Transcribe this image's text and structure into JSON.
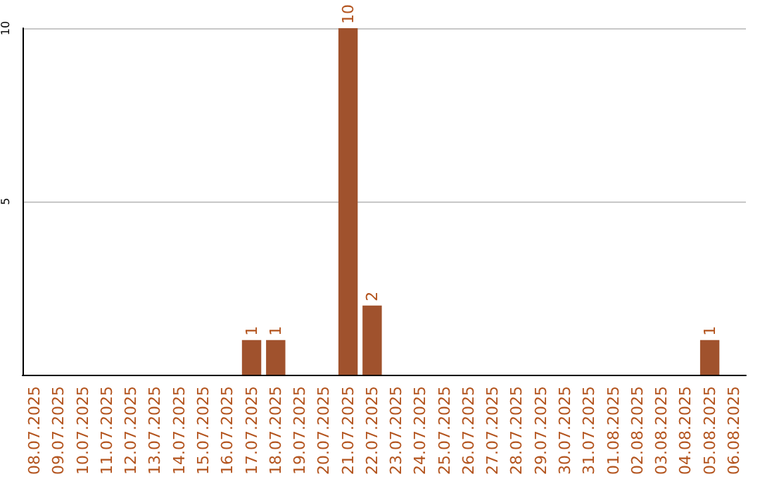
{
  "chart_data": {
    "type": "bar",
    "categories": [
      "08.07.2025",
      "09.07.2025",
      "10.07.2025",
      "11.07.2025",
      "12.07.2025",
      "13.07.2025",
      "14.07.2025",
      "15.07.2025",
      "16.07.2025",
      "17.07.2025",
      "18.07.2025",
      "19.07.2025",
      "20.07.2025",
      "21.07.2025",
      "22.07.2025",
      "23.07.2025",
      "24.07.2025",
      "25.07.2025",
      "26.07.2025",
      "27.07.2025",
      "28.07.2025",
      "29.07.2025",
      "30.07.2025",
      "31.07.2025",
      "01.08.2025",
      "02.08.2025",
      "03.08.2025",
      "04.08.2025",
      "05.08.2025",
      "06.08.2025"
    ],
    "values": [
      0,
      0,
      0,
      0,
      0,
      0,
      0,
      0,
      0,
      1,
      1,
      0,
      0,
      10,
      2,
      0,
      0,
      0,
      0,
      0,
      0,
      0,
      0,
      0,
      0,
      0,
      0,
      0,
      1,
      0
    ],
    "value_labels": [
      null,
      null,
      null,
      null,
      null,
      null,
      null,
      null,
      null,
      "1",
      "1",
      null,
      null,
      "10",
      "2",
      null,
      null,
      null,
      null,
      null,
      null,
      null,
      null,
      null,
      null,
      null,
      null,
      null,
      "1",
      null
    ],
    "color": "#a0522d",
    "ylim": [
      0,
      10
    ],
    "yticks": [
      5,
      10
    ],
    "grid": "y"
  }
}
